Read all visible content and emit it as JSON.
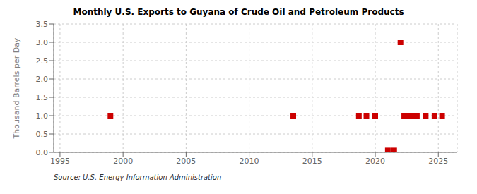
{
  "chart_data": {
    "type": "scatter",
    "title": "Monthly U.S. Exports to Guyana of Crude Oil and Petroleum Products",
    "y_label": "Thousand Barrels per Day",
    "annotation": "Source: U.S. Energy Information Administration",
    "color": "#cc0000",
    "marker": "square",
    "grid": true,
    "xlim": [
      1994.5,
      2026.5
    ],
    "ylim": [
      0.0,
      3.5
    ],
    "xticks": [
      1995,
      2000,
      2005,
      2010,
      2015,
      2020,
      2025
    ],
    "yticks": [
      {
        "value": 0.0,
        "label": "0.0"
      },
      {
        "value": 0.5,
        "label": "0.5"
      },
      {
        "value": 1.0,
        "label": "1.0"
      },
      {
        "value": 1.5,
        "label": "1.5"
      },
      {
        "value": 2.0,
        "label": "2.0"
      },
      {
        "value": 2.5,
        "label": "2.5"
      },
      {
        "value": 3.0,
        "label": "3.0"
      },
      {
        "value": 3.5,
        "label": "3.5"
      }
    ],
    "x": [
      1999.0,
      2013.5,
      2018.7,
      2019.3,
      2020.0,
      2021.0,
      2021.5,
      2022.0,
      2022.3,
      2022.6,
      2023.0,
      2023.3,
      2024.0,
      2024.7,
      2025.3
    ],
    "values": [
      1.0,
      1.0,
      1.0,
      1.0,
      1.0,
      0.05,
      0.05,
      3.0,
      1.0,
      1.0,
      1.0,
      1.0,
      1.0,
      1.0,
      1.0
    ]
  }
}
